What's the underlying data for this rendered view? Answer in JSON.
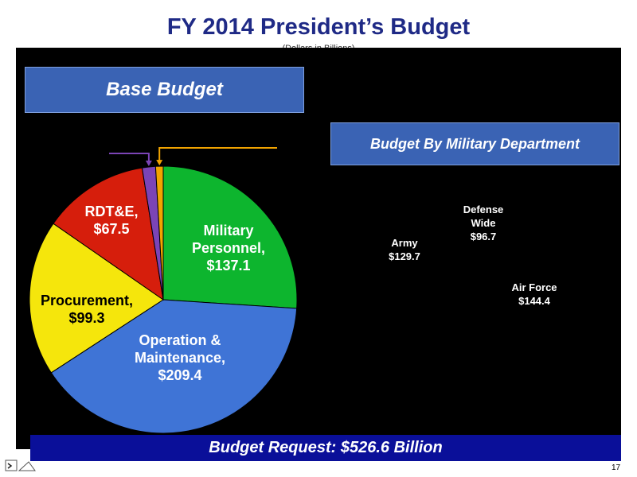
{
  "header": {
    "title": "FY 2014 President’s Budget",
    "subtitle": "(Dollars in Billions)"
  },
  "left_panel": {
    "title": "Base Budget"
  },
  "right_panel": {
    "title": "Budget By Military Department"
  },
  "footer": {
    "request": "Budget Request: $526.6 Billion",
    "page_number": "17"
  },
  "chart_data": [
    {
      "type": "pie",
      "title": "Base Budget",
      "slices": [
        {
          "name": "Military Personnel,",
          "label_value": "$137.1",
          "value": 137.1,
          "color": "#0db52e"
        },
        {
          "name": "Operation & Maintenance,",
          "label_value": "$209.4",
          "value": 209.4,
          "color": "#3f74d6"
        },
        {
          "name": "Procurement,",
          "label_value": "$99.3",
          "value": 99.3,
          "color": "#f5e60c"
        },
        {
          "name": "RDT&E,",
          "label_value": "$67.5",
          "value": 67.5,
          "color": "#d61e0c"
        },
        {
          "name": "",
          "label_value": "",
          "value": 8.5,
          "color": "#7b44b6"
        },
        {
          "name": "",
          "label_value": "",
          "value": 4.8,
          "color": "#f2a400"
        }
      ]
    },
    {
      "type": "pie",
      "title": "Budget By Military Department",
      "slices": [
        {
          "name": "Army",
          "label_value": "$129.7",
          "value": 129.7
        },
        {
          "name": "Defense Wide",
          "label_value": "$96.7",
          "value": 96.7
        },
        {
          "name": "Air Force",
          "label_value": "$144.4",
          "value": 144.4
        }
      ]
    }
  ]
}
